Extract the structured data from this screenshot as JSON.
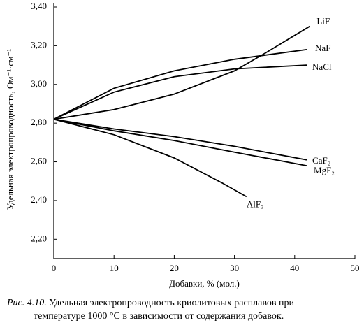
{
  "chart_data": {
    "type": "line",
    "ylabel": "Удельная электропроводность, Ом⁻¹·см⁻¹",
    "xlabel": "Добавки, % (мол.)",
    "caption_label": "Рис. 4.10.",
    "caption_lines": [
      "Удельная электропроводность криолитовых расплавов при",
      "температуре 1000 °C в зависимости от содержания добавок."
    ],
    "xlim": [
      0,
      50
    ],
    "xticks": [
      0,
      10,
      20,
      30,
      40,
      50
    ],
    "ylim": [
      2.1,
      3.4
    ],
    "yticks": [
      {
        "value": 2.2,
        "label": "2,20"
      },
      {
        "value": 2.4,
        "label": "2,40"
      },
      {
        "value": 2.6,
        "label": "2,60"
      },
      {
        "value": 2.8,
        "label": "2,80"
      },
      {
        "value": 3.0,
        "label": "3,00"
      },
      {
        "value": 3.2,
        "label": "3,20"
      },
      {
        "value": 3.4,
        "label": "3,40"
      }
    ],
    "series": [
      {
        "name": "LiF",
        "color": "#000000",
        "x": [
          0,
          10,
          20,
          30,
          35,
          42.5
        ],
        "values": [
          2.82,
          2.87,
          2.95,
          3.07,
          3.16,
          3.3
        ]
      },
      {
        "name": "NaF",
        "color": "#000000",
        "x": [
          0,
          10,
          20,
          30,
          42
        ],
        "values": [
          2.82,
          2.98,
          3.07,
          3.13,
          3.18
        ]
      },
      {
        "name": "NaCl",
        "color": "#000000",
        "x": [
          0,
          10,
          20,
          30,
          42
        ],
        "values": [
          2.82,
          2.96,
          3.04,
          3.08,
          3.1
        ]
      },
      {
        "name": "CaF₂",
        "color": "#000000",
        "x": [
          0,
          10,
          20,
          30,
          42
        ],
        "values": [
          2.82,
          2.77,
          2.73,
          2.68,
          2.61
        ]
      },
      {
        "name": "MgF₂",
        "color": "#000000",
        "x": [
          0,
          10,
          20,
          30,
          42
        ],
        "values": [
          2.82,
          2.76,
          2.71,
          2.65,
          2.58
        ]
      },
      {
        "name": "AlF₃",
        "color": "#000000",
        "x": [
          0,
          10,
          20,
          28,
          32
        ],
        "values": [
          2.82,
          2.74,
          2.62,
          2.49,
          2.42
        ]
      }
    ]
  }
}
